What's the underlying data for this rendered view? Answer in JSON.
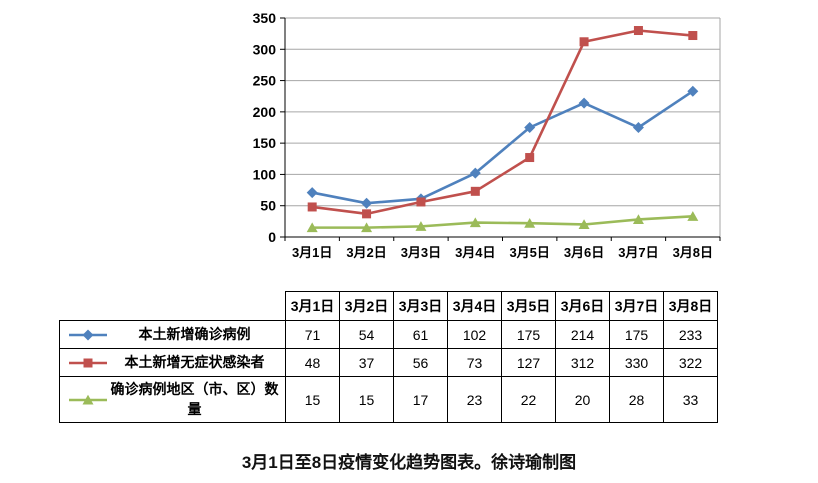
{
  "caption": "3月1日至8日疫情变化趋势图表。徐诗瑜制图",
  "chart_data": {
    "type": "line",
    "title": "",
    "xlabel": "",
    "ylabel": "",
    "categories": [
      "3月1日",
      "3月2日",
      "3月3日",
      "3月4日",
      "3月5日",
      "3月6日",
      "3月7日",
      "3月8日"
    ],
    "series": [
      {
        "name": "本土新增确诊病例",
        "values": [
          71,
          54,
          61,
          102,
          175,
          214,
          175,
          233
        ],
        "color": "#4F81BD",
        "marker": "diamond"
      },
      {
        "name": "本土新增无症状感染者",
        "values": [
          48,
          37,
          56,
          73,
          127,
          312,
          330,
          322
        ],
        "color": "#C0504D",
        "marker": "square"
      },
      {
        "name": "确诊病例地区（市、区）数量",
        "values": [
          15,
          15,
          17,
          23,
          22,
          20,
          28,
          33
        ],
        "color": "#9BBB59",
        "marker": "triangle"
      }
    ],
    "ylim": [
      0,
      350
    ],
    "ytick_step": 50,
    "grid": true,
    "legend_position": "table-left-column"
  },
  "table": {
    "corner_label": "",
    "columns": [
      "3月1日",
      "3月2日",
      "3月3日",
      "3月4日",
      "3月5日",
      "3月6日",
      "3月7日",
      "3月8日"
    ]
  }
}
